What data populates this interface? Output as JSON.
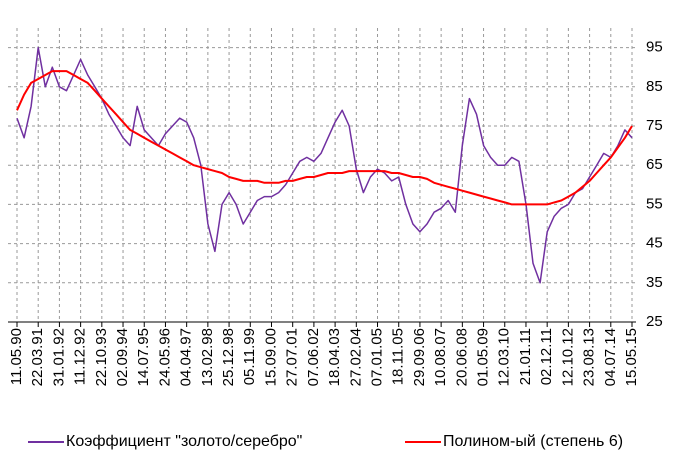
{
  "chart_data": {
    "type": "line",
    "categories": [
      "11.05.90",
      null,
      null,
      "22.03.91",
      null,
      null,
      "31.01.92",
      null,
      null,
      "11.12.92",
      null,
      null,
      "22.10.93",
      null,
      null,
      "02.09.94",
      null,
      null,
      "14.07.95",
      null,
      null,
      "24.05.96",
      null,
      null,
      "04.04.97",
      null,
      null,
      "13.02.98",
      null,
      null,
      "25.12.98",
      null,
      null,
      "05.11.99",
      null,
      null,
      "15.09.00",
      null,
      null,
      "27.07.01",
      null,
      null,
      "07.06.02",
      null,
      null,
      "18.04.03",
      null,
      null,
      "27.02.04",
      null,
      null,
      "07.01.05",
      null,
      null,
      "18.11.05",
      null,
      null,
      "29.09.06",
      null,
      null,
      "10.08.07",
      null,
      null,
      "20.06.08",
      null,
      null,
      "01.05.09",
      null,
      null,
      "12.03.10",
      null,
      null,
      "21.01.11",
      null,
      null,
      "02.12.11",
      null,
      null,
      "12.10.12",
      null,
      null,
      "23.08.13",
      null,
      null,
      "04.07.14",
      null,
      null,
      "15.05.15"
    ],
    "series": [
      {
        "name": "Коэффициент \"золото/серебро\"",
        "color": "#7030a0",
        "values": [
          77,
          72,
          80,
          95,
          85,
          90,
          85,
          84,
          88,
          92,
          88,
          85,
          82,
          78,
          75,
          72,
          70,
          80,
          74,
          72,
          70,
          73,
          75,
          77,
          76,
          72,
          65,
          50,
          43,
          55,
          58,
          55,
          50,
          53,
          56,
          57,
          57,
          58,
          60,
          63,
          66,
          67,
          66,
          68,
          72,
          76,
          79,
          75,
          64,
          58,
          62,
          64,
          63,
          61,
          62,
          55,
          50,
          48,
          50,
          53,
          54,
          56,
          53,
          70,
          82,
          78,
          70,
          67,
          65,
          65,
          67,
          66,
          55,
          40,
          35,
          48,
          52,
          54,
          55,
          58,
          59,
          62,
          65,
          68,
          67,
          70,
          74,
          72
        ]
      },
      {
        "name": "Полином-ый (степень 6)",
        "color": "#ff0000",
        "values": [
          79,
          83,
          86,
          87,
          88,
          89,
          89,
          89,
          88,
          87,
          86,
          84,
          82,
          80,
          78,
          76,
          74,
          73,
          72,
          71,
          70,
          69,
          68,
          67,
          66,
          65,
          64.5,
          64,
          63.5,
          63,
          62,
          61.5,
          61,
          61,
          61,
          60.5,
          60.5,
          60.5,
          61,
          61,
          61.5,
          62,
          62,
          62.5,
          63,
          63,
          63,
          63.5,
          63.5,
          63.5,
          63.5,
          63.5,
          63.5,
          63,
          63,
          62.5,
          62,
          62,
          61.5,
          60.5,
          60,
          59.5,
          59,
          58.5,
          58,
          57.5,
          57,
          56.5,
          56,
          55.5,
          55,
          55,
          55,
          55,
          55,
          55,
          55.5,
          56,
          57,
          58,
          59.5,
          61,
          63,
          65,
          67,
          69.5,
          72,
          75
        ]
      }
    ],
    "ylim": [
      25,
      100
    ],
    "yticks": [
      25,
      35,
      45,
      55,
      65,
      75,
      85,
      95
    ],
    "grid": true,
    "legend": "bottom"
  }
}
